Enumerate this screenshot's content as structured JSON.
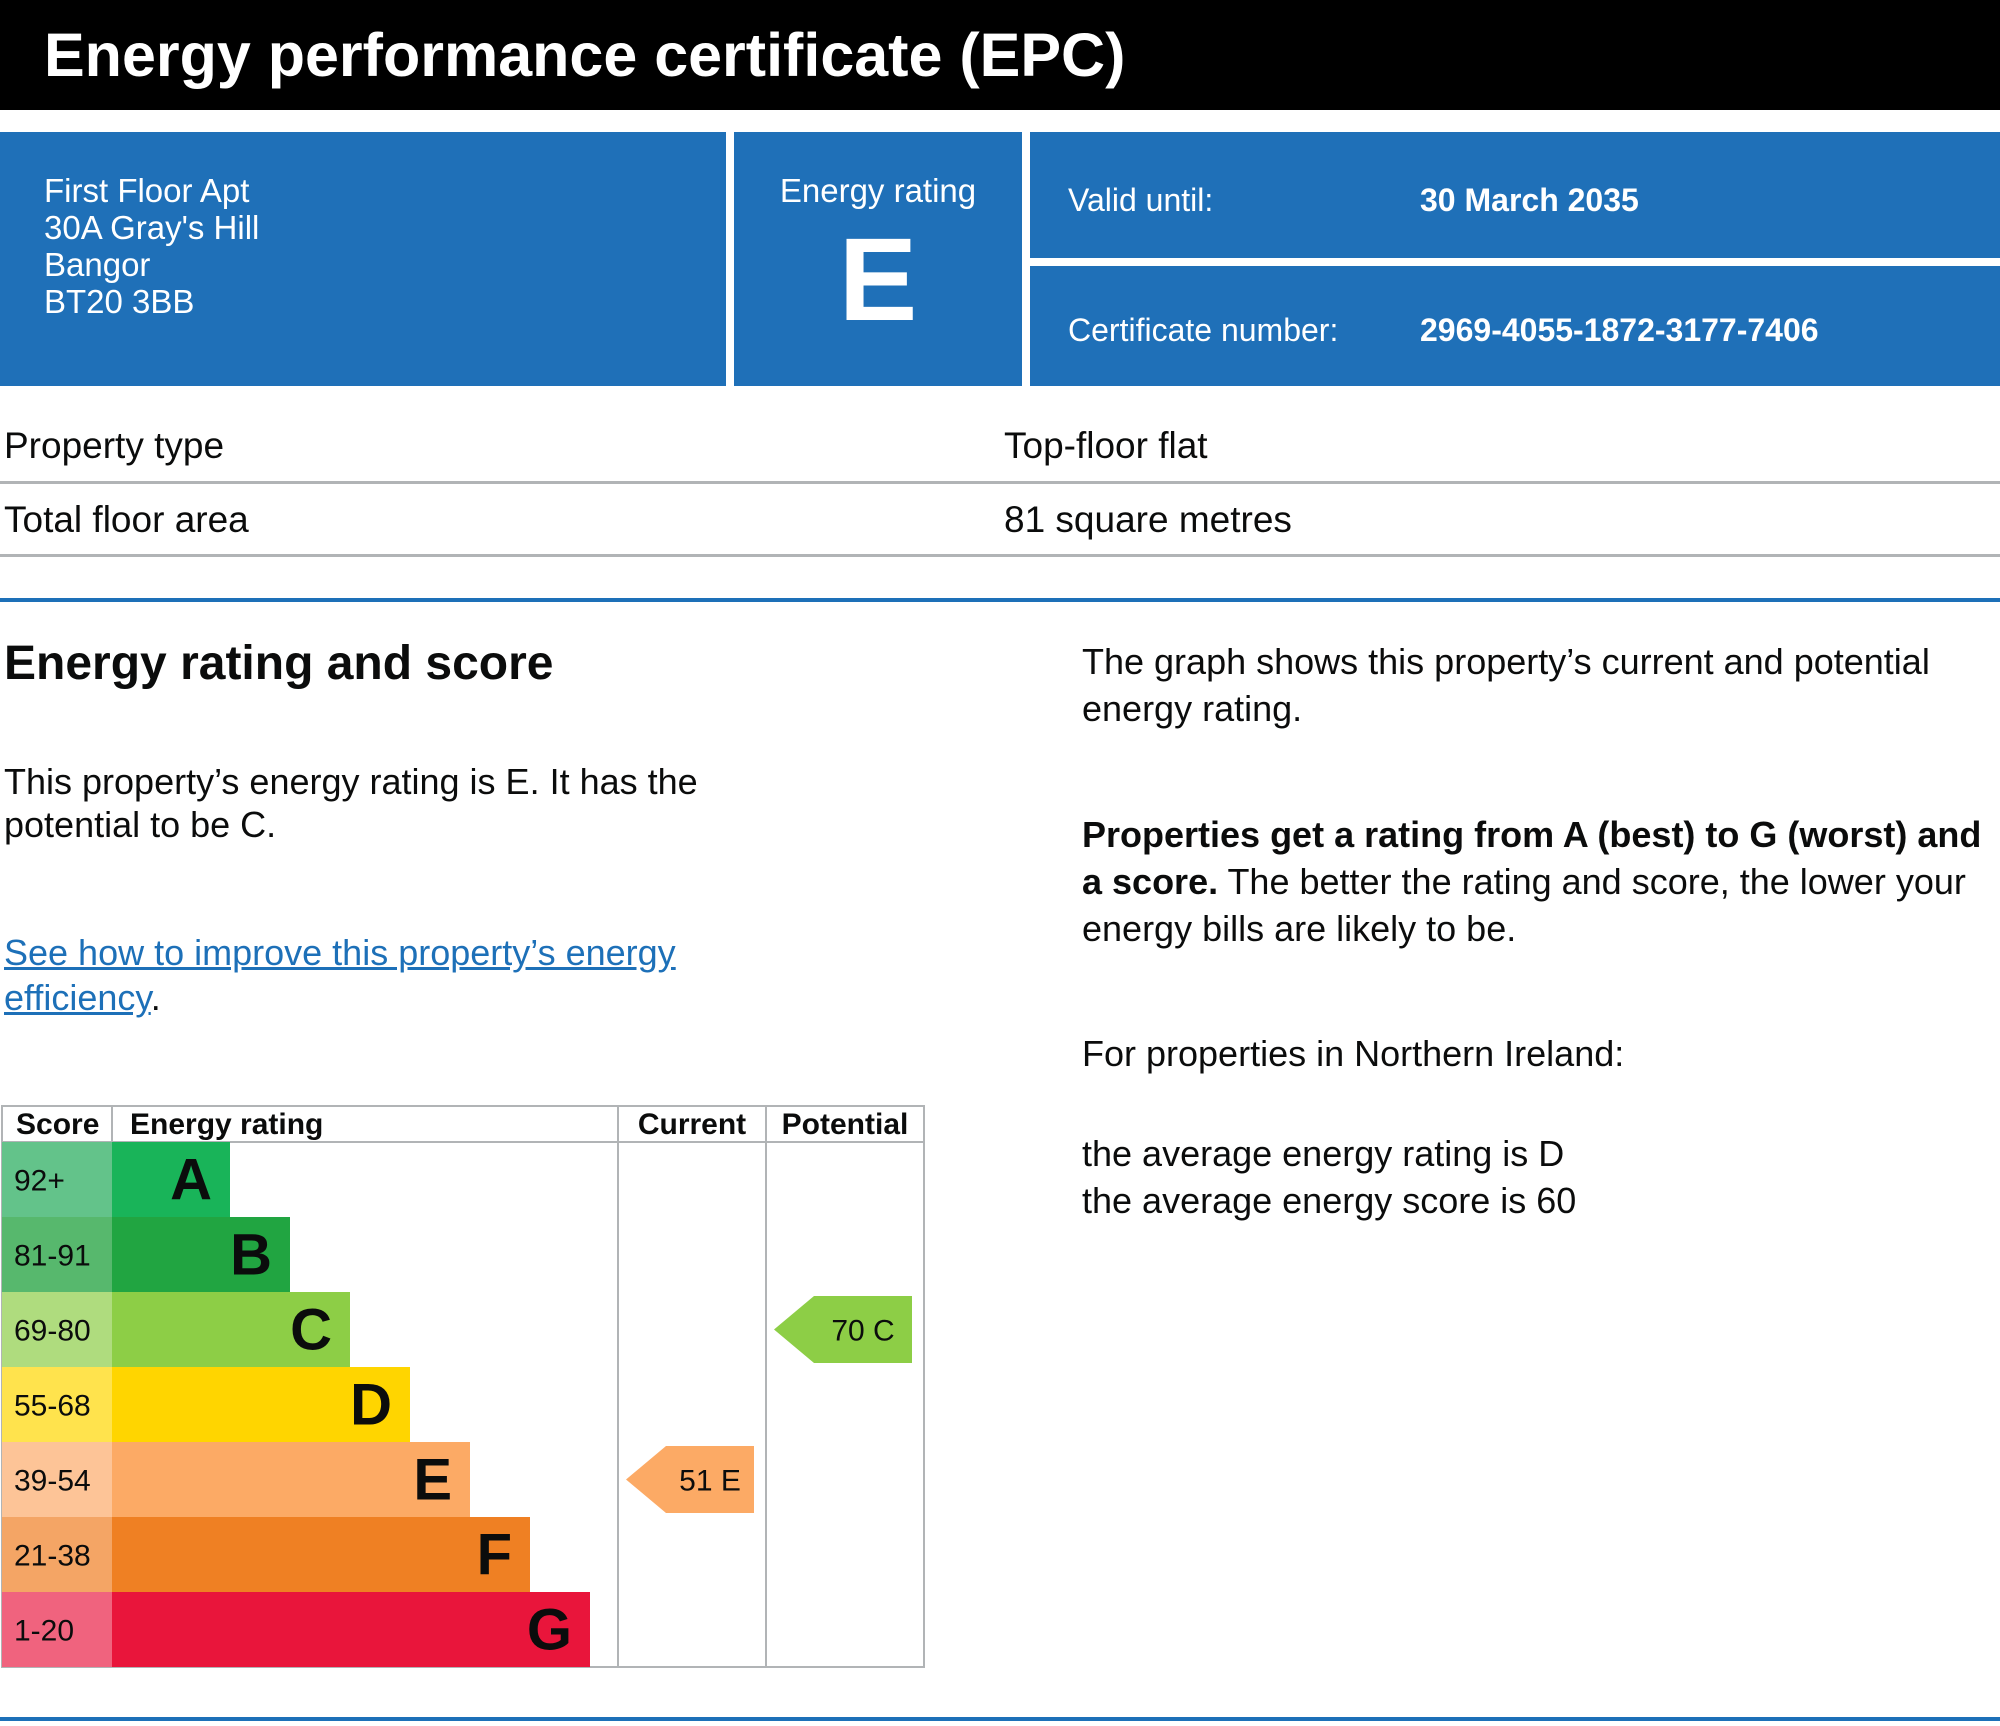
{
  "header": {
    "title": "Energy performance certificate (EPC)"
  },
  "address": {
    "lines": [
      "First Floor Apt",
      "30A Gray's Hill",
      "Bangor",
      "BT20 3BB"
    ]
  },
  "rating_panel": {
    "label": "Energy rating",
    "letter": "E"
  },
  "validity": {
    "valid_label": "Valid until:",
    "valid_value": "30 March 2035",
    "cert_label": "Certificate number:",
    "cert_value": "2969-4055-1872-3177-7406"
  },
  "property": {
    "type_label": "Property type",
    "type_value": "Top-floor flat",
    "area_label": "Total floor area",
    "area_value": "81 square metres"
  },
  "section": {
    "heading": "Energy rating and score",
    "sentence": "This property’s energy rating is E. It has the potential to be C.",
    "link_text": "See how to improve this property’s energy efficiency",
    "link_suffix": "."
  },
  "explanation": {
    "graph_note": "The graph shows this property’s current and potential energy rating.",
    "bold_part": "Properties get a rating from A (best) to G (worst) and a score.",
    "rest_part": " The better the rating and score, the lower your energy bills are likely to be.",
    "ni_intro": "For properties in Northern Ireland:",
    "avg_rating": "the average energy rating is D",
    "avg_score": "the average energy score is 60"
  },
  "chart_data": {
    "type": "table",
    "headers": {
      "score": "Score",
      "rating": "Energy rating",
      "current": "Current",
      "potential": "Potential"
    },
    "bands": [
      {
        "letter": "A",
        "range": "92+",
        "color": "#19b459",
        "score_bg": "#63c38a"
      },
      {
        "letter": "B",
        "range": "81-91",
        "color": "#21a541",
        "score_bg": "#57b86d"
      },
      {
        "letter": "C",
        "range": "69-80",
        "color": "#8dce46",
        "score_bg": "#afdc7e"
      },
      {
        "letter": "D",
        "range": "55-68",
        "color": "#ffd500",
        "score_bg": "#ffe34d"
      },
      {
        "letter": "E",
        "range": "39-54",
        "color": "#fcaa65",
        "score_bg": "#fdc497"
      },
      {
        "letter": "F",
        "range": "21-38",
        "color": "#ef8023",
        "score_bg": "#f4a565"
      },
      {
        "letter": "G",
        "range": "1-20",
        "color": "#e9153b",
        "score_bg": "#f0637e"
      }
    ],
    "current": {
      "score": 51,
      "letter": "E",
      "label": "51  E",
      "color": "#fcaa65"
    },
    "potential": {
      "score": 70,
      "letter": "C",
      "label": "70  C",
      "color": "#8dce46"
    }
  }
}
